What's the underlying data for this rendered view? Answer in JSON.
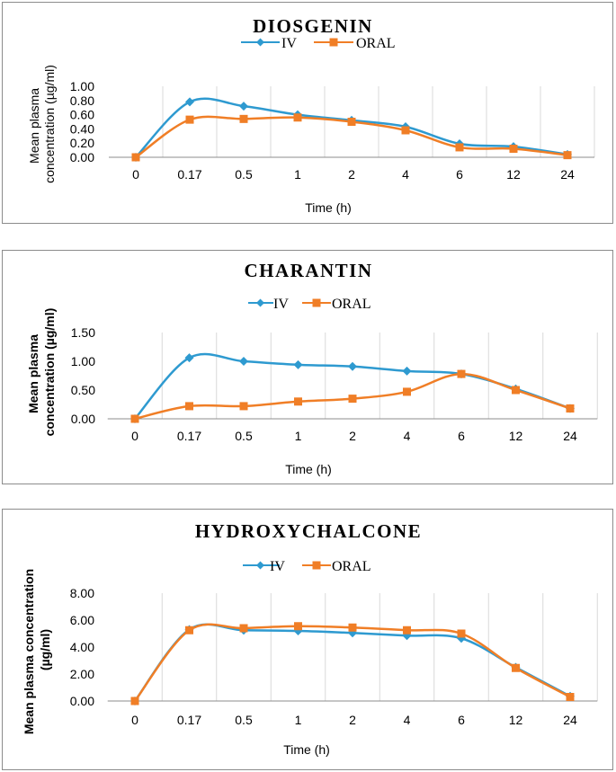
{
  "chart_data": [
    {
      "type": "line",
      "title": "DIOSGENIN",
      "categories": [
        "0",
        "0.17",
        "0.5",
        "1",
        "2",
        "4",
        "6",
        "12",
        "24"
      ],
      "series": [
        {
          "name": "IV",
          "color": "#2E9AD0",
          "marker": "diamond",
          "values": [
            0.0,
            0.78,
            0.72,
            0.6,
            0.52,
            0.43,
            0.19,
            0.15,
            0.04
          ]
        },
        {
          "name": "ORAL",
          "color": "#F07E26",
          "marker": "square",
          "values": [
            0.0,
            0.53,
            0.54,
            0.56,
            0.5,
            0.38,
            0.14,
            0.12,
            0.03
          ]
        }
      ],
      "xlabel": "Time (h)",
      "ylabel_lines": [
        "Mean plasma",
        "concentration (µg/ml)"
      ],
      "ylim": [
        0,
        1.0
      ],
      "yticks": [
        "0.00",
        "0.20",
        "0.40",
        "0.60",
        "0.80",
        "1.00"
      ],
      "ytick_values": [
        0,
        0.2,
        0.4,
        0.6,
        0.8,
        1.0
      ],
      "grid": true,
      "legend": "top"
    },
    {
      "type": "line",
      "title": "CHARANTIN",
      "categories": [
        "0",
        "0.17",
        "0.5",
        "1",
        "2",
        "4",
        "6",
        "12",
        "24"
      ],
      "series": [
        {
          "name": "IV",
          "color": "#2E9AD0",
          "marker": "diamond",
          "values": [
            0.0,
            1.06,
            1.0,
            0.94,
            0.91,
            0.83,
            0.78,
            0.52,
            0.18
          ]
        },
        {
          "name": "ORAL",
          "color": "#F07E26",
          "marker": "square",
          "values": [
            0.0,
            0.22,
            0.22,
            0.3,
            0.35,
            0.47,
            0.78,
            0.5,
            0.18
          ]
        }
      ],
      "xlabel": "Time (h)",
      "ylabel_lines": [
        "Mean plasma",
        "concentration (µg/ml)"
      ],
      "ylim": [
        0,
        1.5
      ],
      "yticks": [
        "0.00",
        "0.50",
        "1.00",
        "1.50"
      ],
      "ytick_values": [
        0,
        0.5,
        1.0,
        1.5
      ],
      "grid": true,
      "legend": "top"
    },
    {
      "type": "line",
      "title": "HYDROXYCHALCONE",
      "categories": [
        "0",
        "0.17",
        "0.5",
        "1",
        "2",
        "4",
        "6",
        "12",
        "24"
      ],
      "series": [
        {
          "name": "IV",
          "color": "#2E9AD0",
          "marker": "diamond",
          "values": [
            0.0,
            5.3,
            5.25,
            5.2,
            5.05,
            4.85,
            4.65,
            2.5,
            0.35
          ]
        },
        {
          "name": "ORAL",
          "color": "#F07E26",
          "marker": "square",
          "values": [
            0.0,
            5.25,
            5.4,
            5.55,
            5.45,
            5.25,
            5.0,
            2.45,
            0.3
          ]
        }
      ],
      "xlabel": "Time (h)",
      "ylabel_lines": [
        "Mean plasma concentration",
        "(µg/ml)"
      ],
      "ylim": [
        0,
        8.0
      ],
      "yticks": [
        "0.00",
        "2.00",
        "4.00",
        "6.00",
        "8.00"
      ],
      "ytick_values": [
        0,
        2,
        4,
        6,
        8
      ],
      "grid": true,
      "legend": "top"
    }
  ]
}
